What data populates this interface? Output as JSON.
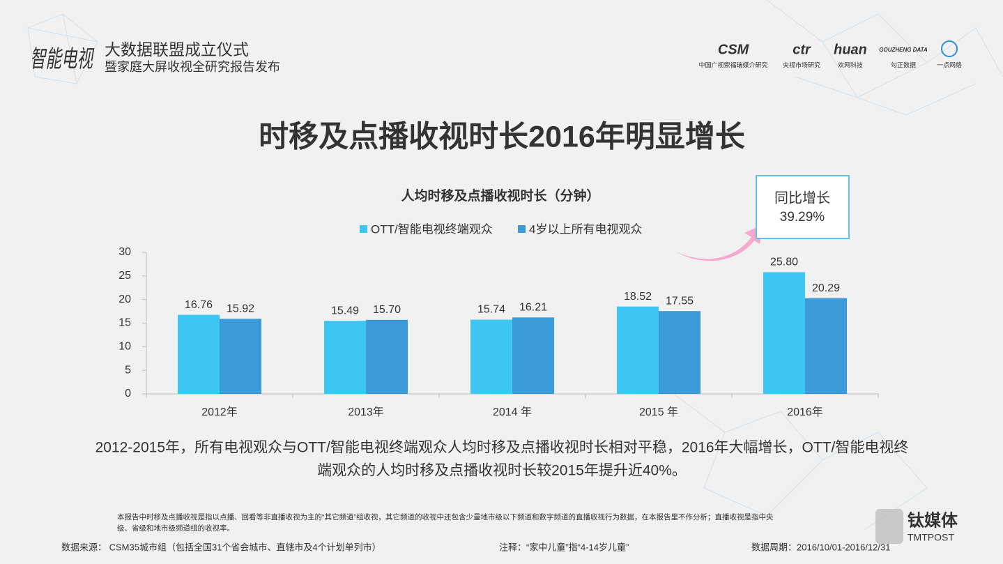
{
  "header": {
    "logo": "智能电视",
    "event_line1": "大数据联盟成立仪式",
    "event_line2": "暨家庭大屏收视全研究报告发布",
    "partners": [
      {
        "logo": "CSM",
        "caption": "中国广视索福瑞媒介研究"
      },
      {
        "logo": "ctr",
        "caption": "央视市场研究"
      },
      {
        "logo": "huan",
        "caption": "欢网科技"
      },
      {
        "logo": "GOUZHENG DATA",
        "caption": "勾正数据"
      },
      {
        "logo": "",
        "caption": "一点网络"
      }
    ]
  },
  "title": "时移及点播收视时长2016年明显增长",
  "chart_data": {
    "type": "bar",
    "title": "人均时移及点播收视时长（分钟）",
    "categories": [
      "2012年",
      "2013年",
      "2014 年",
      "2015 年",
      "2016年"
    ],
    "series": [
      {
        "name": "OTT/智能电视终端观众",
        "color": "#3ec6f2",
        "values": [
          16.76,
          15.49,
          15.74,
          18.52,
          25.8
        ],
        "value_labels": [
          "16.76",
          "15.49",
          "15.74",
          "18.52",
          "25.80"
        ]
      },
      {
        "name": "4岁以上所有电视观众",
        "color": "#3b9bd8",
        "values": [
          15.92,
          15.7,
          16.21,
          17.55,
          20.29
        ],
        "value_labels": [
          "15.92",
          "15.70",
          "16.21",
          "17.55",
          "20.29"
        ]
      }
    ],
    "ylim": [
      0,
      30
    ],
    "yticks": [
      0,
      5,
      10,
      15,
      20,
      25,
      30
    ],
    "grid": false,
    "legend": "top"
  },
  "callout": {
    "label": "同比增长",
    "value": "39.29%"
  },
  "summary": [
    "2012-2015年，所有电视观众与OTT/智能电视终端观众人均时移及点播收视时长相对平稳，2016年大幅增长，OTT/智能电视终",
    "端观众的人均时移及点播收视时长较2015年提升近40%。"
  ],
  "footnote": [
    "本报告中时移及点播收视是指以点播、回看等非直播收视为主的“其它频道”组收视，其它频道的收视中还包含少量地市级以下频道和数字频道的直播收视行为数据，在本报告里不作分析；直播收视是指中央",
    "级、省级和地市级频道组的收视率。"
  ],
  "footer": {
    "source": "数据来源： CSM35城市组（包括全国31个省会城市、直辖市及4个计划单列市）",
    "note": "注释：“家中儿童”指“4-14岁儿童”",
    "period": "数据周期：2016/10/01-2016/12/31"
  },
  "watermark": {
    "cn": "钛媒体",
    "en": "TMTPOST"
  }
}
